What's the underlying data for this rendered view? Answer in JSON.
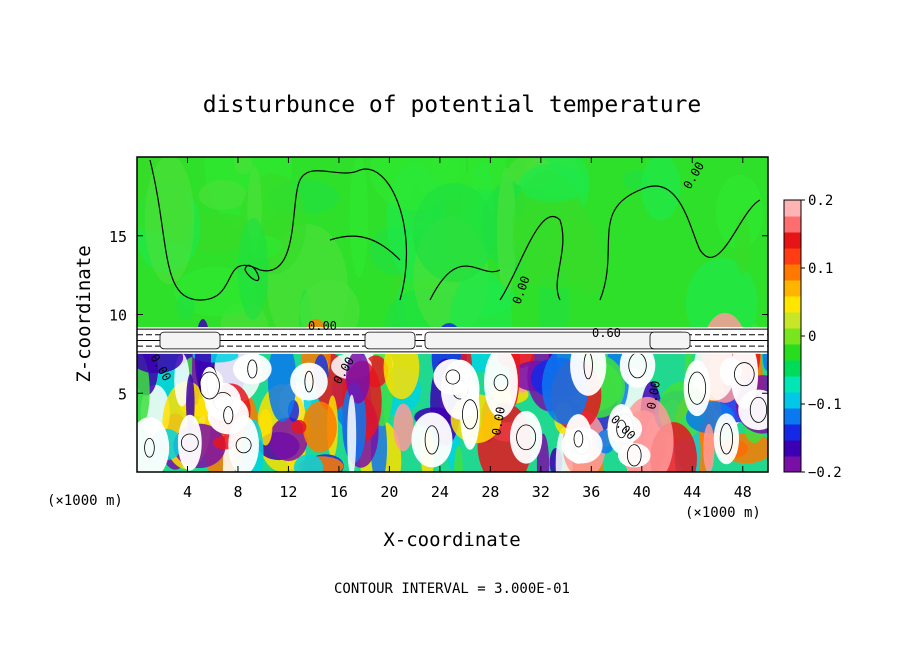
{
  "chart_data": {
    "type": "heatmap",
    "title": "disturbunce of potential temperature",
    "xlabel": "X-coordinate",
    "ylabel": "Z-coordinate",
    "x_unit_left": "(×1000 m)",
    "x_unit_right": "(×1000 m)",
    "x_ticks": [
      "4",
      "8",
      "12",
      "16",
      "20",
      "24",
      "28",
      "32",
      "36",
      "40",
      "44",
      "48"
    ],
    "x_tick_values": [
      4,
      8,
      12,
      16,
      20,
      24,
      28,
      32,
      36,
      40,
      44,
      48
    ],
    "y_ticks": [
      "5",
      "10",
      "15"
    ],
    "y_tick_values": [
      5,
      10,
      15
    ],
    "xlim": [
      0,
      50
    ],
    "ylim": [
      0,
      20
    ],
    "footer": "CONTOUR INTERVAL = 3.000E-01",
    "colorbar": {
      "tick_labels": [
        "0.2",
        "0.1",
        "0",
        "−0.1",
        "−0.2"
      ],
      "tick_values": [
        0.2,
        0.1,
        0.0,
        -0.1,
        -0.2
      ],
      "range": [
        -0.2,
        0.2
      ],
      "colors": [
        "#7a0fa8",
        "#3c00b4",
        "#1428e6",
        "#0a78f0",
        "#00c8e6",
        "#00e6b4",
        "#00dc5a",
        "#28dc1e",
        "#78e61e",
        "#c8e628",
        "#ffe600",
        "#ffb400",
        "#ff7800",
        "#ff3c14",
        "#e61414",
        "#ff6e6e",
        "#ffb4b4"
      ]
    },
    "contour_labels": [
      "0.00",
      "0.00",
      "0.00",
      "0.00",
      "0.00",
      "0.00",
      "0.60",
      "0.00",
      "0.00"
    ],
    "upper_region_value": 0.0,
    "inversion_layer_z": [
      7.5,
      9.2
    ],
    "notes_regions": [
      {
        "label": "upper-layer",
        "z_range": [
          9.2,
          20
        ],
        "approx_value": 0.0
      },
      {
        "label": "turbulent-lower-layer",
        "z_range": [
          0,
          7.5
        ],
        "value_range": [
          -0.2,
          0.2
        ]
      }
    ]
  }
}
